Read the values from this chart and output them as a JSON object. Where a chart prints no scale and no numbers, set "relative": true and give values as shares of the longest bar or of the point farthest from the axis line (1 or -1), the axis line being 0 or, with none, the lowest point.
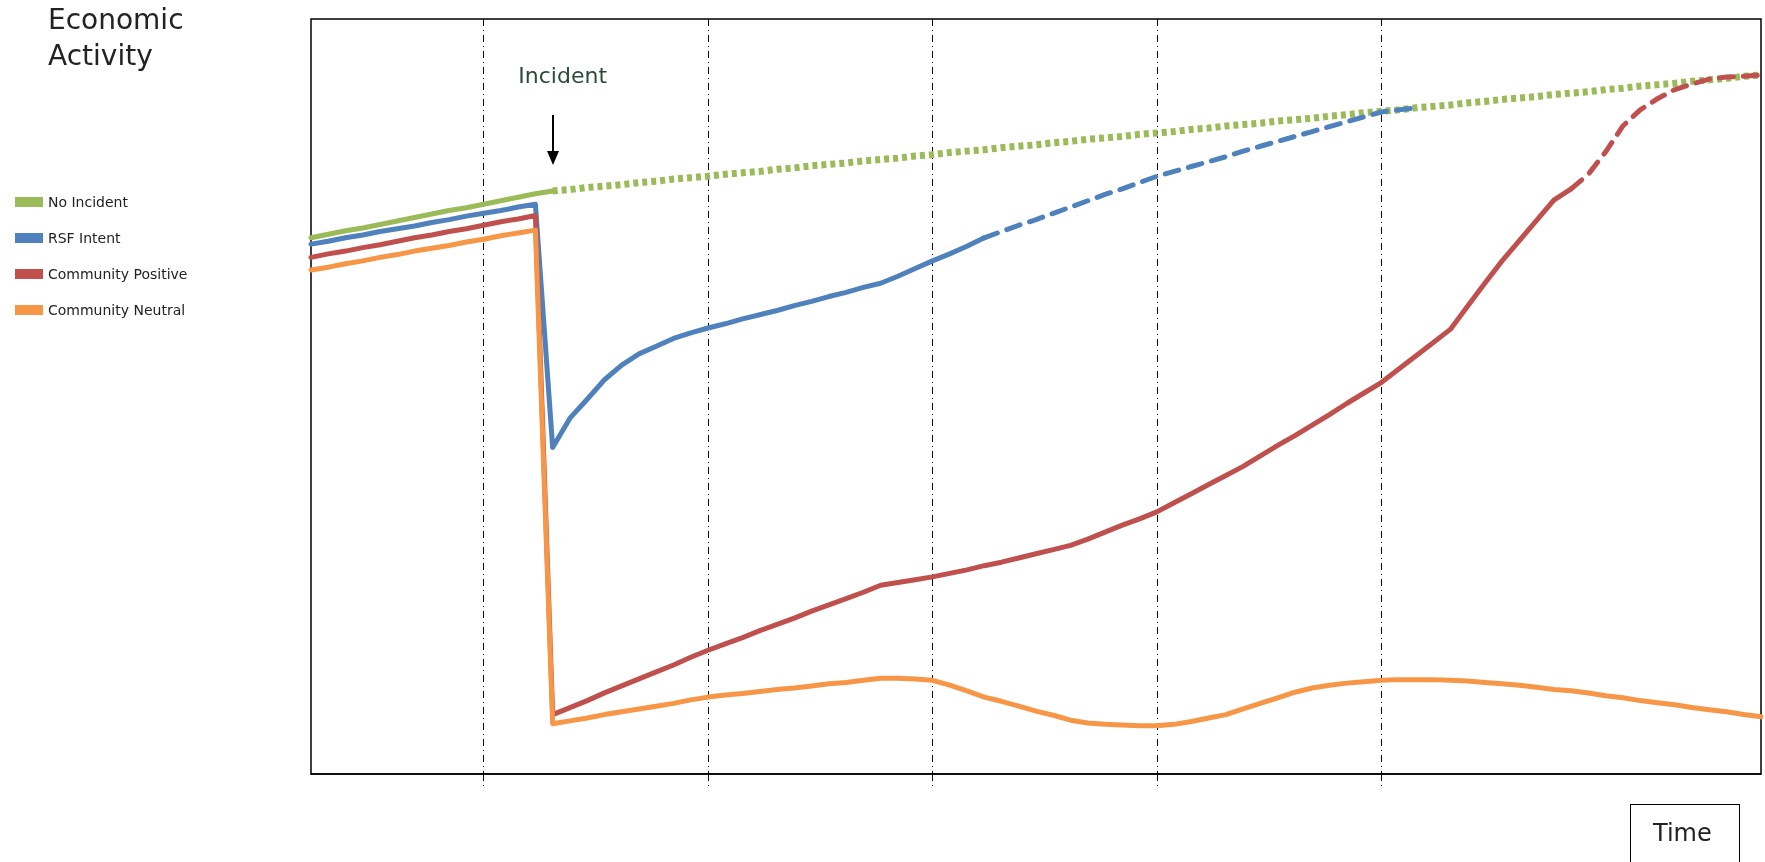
{
  "chart_data": {
    "type": "line",
    "relative": true,
    "ylabel": "Economic Activity",
    "xlabel": "Time",
    "categories": [
      null,
      null,
      null,
      null,
      null,
      null,
      null,
      null,
      null,
      null,
      null,
      null,
      null,
      null,
      null,
      null,
      null,
      null,
      null,
      null,
      null,
      null,
      null,
      null,
      null,
      null,
      null,
      null,
      null,
      null,
      null,
      null,
      null,
      null,
      null,
      null,
      null,
      null,
      null,
      null,
      null,
      null,
      null,
      null,
      null,
      null,
      null,
      null,
      null,
      null,
      null,
      null,
      null,
      null,
      null,
      null,
      null,
      null,
      null,
      null,
      null,
      null,
      null,
      null,
      null,
      null,
      null,
      null,
      null,
      null,
      null,
      null,
      null,
      null,
      null,
      null,
      null,
      null,
      null,
      null,
      null,
      null,
      null,
      null,
      null
    ],
    "grid": "x",
    "legend": "left",
    "marker": "none",
    "annotations": [
      "Incident"
    ],
    "series": [
      {
        "name": "No Incident",
        "color": "#9bbb59",
        "line_style": "solid",
        "values": [
          0.767,
          0.772,
          0.777,
          0.781,
          0.786,
          0.791,
          0.796,
          0.801,
          0.806,
          0.81,
          0.815,
          0.82,
          0.825,
          0.83,
          0.834,
          null,
          null,
          null,
          null,
          null,
          null,
          null,
          null,
          null,
          null,
          null,
          null,
          null,
          null,
          null,
          null,
          null,
          null,
          null,
          null,
          null,
          null,
          null,
          null,
          null,
          null,
          null,
          null,
          null,
          null,
          null,
          null,
          null,
          null,
          null,
          null,
          null,
          null,
          null,
          null,
          null,
          null,
          null,
          null,
          null,
          null,
          null,
          null,
          null,
          null,
          null,
          null,
          null,
          null,
          null,
          null,
          null,
          null,
          null,
          null,
          null,
          null,
          null,
          null,
          null,
          null,
          null,
          null,
          null,
          null
        ]
      },
      {
        "name": "RSF Intent",
        "color": "#4f81bd",
        "line_style": "solid",
        "values": [
          0.758,
          0.762,
          0.767,
          0.771,
          0.776,
          0.78,
          0.784,
          0.789,
          0.793,
          0.798,
          0.802,
          0.806,
          0.811,
          0.815,
          0.467,
          0.509,
          0.536,
          0.564,
          0.585,
          0.601,
          0.612,
          0.623,
          0.631,
          0.638,
          0.644,
          0.651,
          0.657,
          0.663,
          0.67,
          0.676,
          0.683,
          0.689,
          0.696,
          0.702,
          0.712,
          0.723,
          0.734,
          0.744,
          0.755,
          0.767,
          null,
          null,
          null,
          null,
          null,
          null,
          null,
          null,
          null,
          null,
          null,
          null,
          null,
          null,
          null,
          null,
          null,
          null,
          null,
          null,
          null,
          null,
          null,
          null,
          null,
          null,
          null,
          null,
          null,
          null,
          null,
          null,
          null,
          null,
          null,
          null,
          null,
          null,
          null,
          null,
          null,
          null,
          null,
          null,
          null
        ]
      },
      {
        "name": "Community Positive",
        "color": "#c0504d",
        "line_style": "solid",
        "values": [
          0.739,
          0.744,
          0.748,
          0.753,
          0.757,
          0.762,
          0.767,
          0.771,
          0.776,
          0.78,
          0.785,
          0.79,
          0.794,
          0.799,
          0.085,
          0.095,
          0.105,
          0.116,
          0.126,
          0.136,
          0.146,
          0.156,
          0.167,
          0.177,
          0.186,
          0.195,
          0.205,
          0.214,
          0.223,
          0.233,
          0.242,
          0.251,
          0.26,
          0.27,
          0.274,
          0.278,
          0.282,
          0.287,
          0.292,
          0.298,
          0.303,
          0.309,
          0.315,
          0.321,
          0.327,
          0.336,
          0.346,
          0.356,
          0.365,
          0.375,
          0.388,
          0.401,
          0.414,
          0.427,
          0.44,
          0.455,
          0.47,
          0.484,
          0.499,
          0.514,
          0.53,
          0.545,
          0.56,
          0.579,
          0.598,
          0.617,
          0.636,
          0.669,
          0.702,
          0.734,
          0.763,
          0.792,
          0.821,
          0.837,
          null,
          null,
          null,
          null,
          null,
          null,
          null,
          null,
          null,
          null,
          null
        ]
      },
      {
        "name": "Community Neutral",
        "color": "#f79646",
        "line_style": "solid",
        "values": [
          0.721,
          0.725,
          0.73,
          0.734,
          0.739,
          0.743,
          0.748,
          0.752,
          0.756,
          0.761,
          0.765,
          0.77,
          0.774,
          0.778,
          0.072,
          0.076,
          0.08,
          0.085,
          0.089,
          0.093,
          0.097,
          0.101,
          0.106,
          0.11,
          0.113,
          0.115,
          0.118,
          0.121,
          0.123,
          0.126,
          0.129,
          0.131,
          0.134,
          0.137,
          0.137,
          0.136,
          0.134,
          0.127,
          0.119,
          0.11,
          0.104,
          0.097,
          0.09,
          0.084,
          0.077,
          0.073,
          0.071,
          0.07,
          0.069,
          0.069,
          0.071,
          0.075,
          0.08,
          0.085,
          0.093,
          0.101,
          0.109,
          0.117,
          0.123,
          0.127,
          0.13,
          0.132,
          0.134,
          0.135,
          0.135,
          0.135,
          0.134,
          0.133,
          0.131,
          0.129,
          0.127,
          0.124,
          0.121,
          0.119,
          0.116,
          0.112,
          0.109,
          0.105,
          0.102,
          0.099,
          0.095,
          0.092,
          0.089,
          0.085,
          0.082
        ]
      },
      {
        "color": "#9bbb59",
        "line_style": "dotted",
        "values": [
          null,
          null,
          null,
          null,
          null,
          null,
          null,
          null,
          null,
          null,
          null,
          null,
          null,
          null,
          0.834,
          0.836,
          0.839,
          0.841,
          0.843,
          0.846,
          0.848,
          0.851,
          0.853,
          0.855,
          0.858,
          0.86,
          0.862,
          0.865,
          0.867,
          0.87,
          0.872,
          0.874,
          0.877,
          0.879,
          0.881,
          0.884,
          0.886,
          0.889,
          0.891,
          0.893,
          0.896,
          0.898,
          0.9,
          0.903,
          0.905,
          0.908,
          0.91,
          0.912,
          0.915,
          0.917,
          0.919,
          0.922,
          0.924,
          0.927,
          0.929,
          0.931,
          0.934,
          0.936,
          0.938,
          0.941,
          0.943,
          0.946,
          0.948,
          0.95,
          0.953,
          0.955,
          0.957,
          0.96,
          0.962,
          0.965,
          0.967,
          0.969,
          0.972,
          0.974,
          0.976,
          0.979,
          0.981,
          0.984,
          0.986,
          0.988,
          0.991,
          0.993,
          0.995,
          0.998,
          1.0
        ]
      },
      {
        "color": "#4f81bd",
        "line_style": "dashed",
        "values": [
          null,
          null,
          null,
          null,
          null,
          null,
          null,
          null,
          null,
          null,
          null,
          null,
          null,
          null,
          null,
          null,
          null,
          null,
          null,
          null,
          null,
          null,
          null,
          null,
          null,
          null,
          null,
          null,
          null,
          null,
          null,
          null,
          null,
          null,
          null,
          null,
          null,
          null,
          null,
          0.767,
          0.776,
          0.785,
          0.793,
          0.802,
          0.811,
          0.82,
          0.829,
          0.837,
          0.846,
          0.855,
          0.862,
          0.869,
          0.876,
          0.883,
          0.891,
          0.898,
          0.905,
          0.912,
          0.919,
          0.926,
          0.933,
          0.94,
          0.947,
          0.95,
          0.953,
          null,
          null,
          null,
          null,
          null,
          null,
          null,
          null,
          null,
          null,
          null,
          null,
          null,
          null,
          null,
          null,
          null,
          null,
          null,
          null
        ]
      },
      {
        "color": "#c0504d",
        "line_style": "dashed",
        "values": [
          null,
          null,
          null,
          null,
          null,
          null,
          null,
          null,
          null,
          null,
          null,
          null,
          null,
          null,
          null,
          null,
          null,
          null,
          null,
          null,
          null,
          null,
          null,
          null,
          null,
          null,
          null,
          null,
          null,
          null,
          null,
          null,
          null,
          null,
          null,
          null,
          null,
          null,
          null,
          null,
          null,
          null,
          null,
          null,
          null,
          null,
          null,
          null,
          null,
          null,
          null,
          null,
          null,
          null,
          null,
          null,
          null,
          null,
          null,
          null,
          null,
          null,
          null,
          null,
          null,
          null,
          null,
          null,
          null,
          null,
          null,
          null,
          null,
          0.837,
          0.858,
          0.89,
          0.927,
          0.95,
          0.966,
          0.979,
          0.987,
          0.994,
          0.997,
          0.998,
          1.0
        ]
      }
    ]
  }
}
